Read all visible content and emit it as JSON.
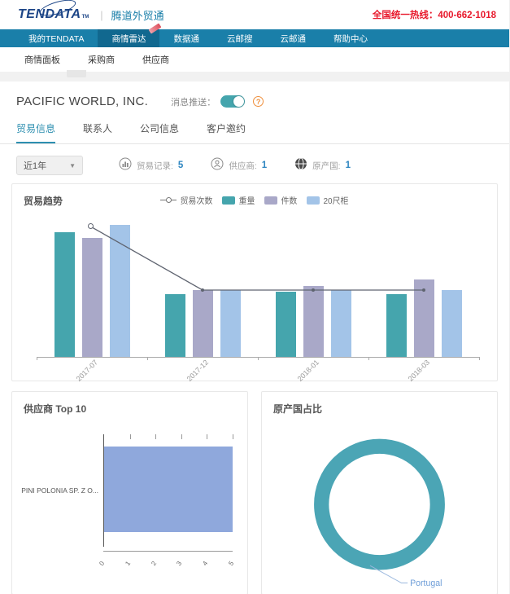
{
  "header": {
    "logo": "TENDATA",
    "logo_tm": "TM",
    "product": "腾道外贸通",
    "hotline": "全国统一热线：400-662-1018"
  },
  "nav": {
    "items": [
      {
        "label": "我的TENDATA",
        "active": false,
        "badge": false
      },
      {
        "label": "商情雷达",
        "active": true,
        "badge": true
      },
      {
        "label": "数据通",
        "active": false,
        "badge": false
      },
      {
        "label": "云邮搜",
        "active": false,
        "badge": false
      },
      {
        "label": "云邮通",
        "active": false,
        "badge": false
      },
      {
        "label": "帮助中心",
        "active": false,
        "badge": false
      }
    ]
  },
  "subnav": {
    "items": [
      "商情面板",
      "采购商",
      "供应商"
    ]
  },
  "company": {
    "name": "PACIFIC WORLD, INC.",
    "push_label": "消息推送：",
    "toggle_on": true,
    "info_glyph": "?"
  },
  "tabs": [
    {
      "label": "贸易信息",
      "active": true
    },
    {
      "label": "联系人",
      "active": false
    },
    {
      "label": "公司信息",
      "active": false
    },
    {
      "label": "客户邀约",
      "active": false
    }
  ],
  "filters": {
    "period": "近1年",
    "stats": [
      {
        "icon": "trade-records-icon",
        "label": "贸易记录:",
        "value": "5"
      },
      {
        "icon": "supplier-icon",
        "label": "供应商:",
        "value": "1"
      },
      {
        "icon": "globe-icon",
        "label": "原产国:",
        "value": "1"
      }
    ]
  },
  "colors": {
    "nav_bg": "#1a7fa9",
    "teal_bar": "#45a5ad",
    "purple_bar": "#a9a8c8",
    "blue_bar": "#a3c4e8",
    "hbar": "#8fa8dc",
    "donut": "#4ba5b5",
    "line": "#5f6470",
    "hotline_red": "#e8192c",
    "value_blue": "#2e86c1",
    "donut_label": "#6f9ed8"
  },
  "chart_data": [
    {
      "id": "trade-trend",
      "type": "bar",
      "title": "贸易趋势",
      "legend_position": "top",
      "categories": [
        "2017-07",
        "2017-12",
        "2018-01",
        "2018-03"
      ],
      "series": [
        {
          "name": "重量",
          "color": "#45a5ad",
          "values_pct": [
            93,
            47,
            49,
            47
          ]
        },
        {
          "name": "件数",
          "color": "#a9a8c8",
          "values_pct": [
            89,
            50,
            53,
            58
          ]
        },
        {
          "name": "20尺柜",
          "color": "#a3c4e8",
          "values_pct": [
            99,
            50,
            50,
            50
          ]
        }
      ],
      "line_series": {
        "name": "贸易次数",
        "color": "#5f6470",
        "values_pct": [
          97,
          50,
          50,
          50
        ],
        "values_est": [
          2,
          1,
          1,
          1
        ]
      },
      "note": "y-axis unlabeled; values are percent of plot height"
    },
    {
      "id": "suppliers-top10",
      "type": "bar-horizontal",
      "title": "供应商 Top 10",
      "categories": [
        "PINI POLONIA SP. Z O..."
      ],
      "values": [
        5
      ],
      "xlim": [
        0,
        5
      ],
      "xticks": [
        0,
        1,
        2,
        3,
        4,
        5
      ],
      "bar_color": "#8fa8dc"
    },
    {
      "id": "origin-share",
      "type": "donut",
      "title": "原产国占比",
      "slices": [
        {
          "label": "Portugal",
          "value": 100,
          "color": "#4ba5b5"
        }
      ]
    }
  ]
}
